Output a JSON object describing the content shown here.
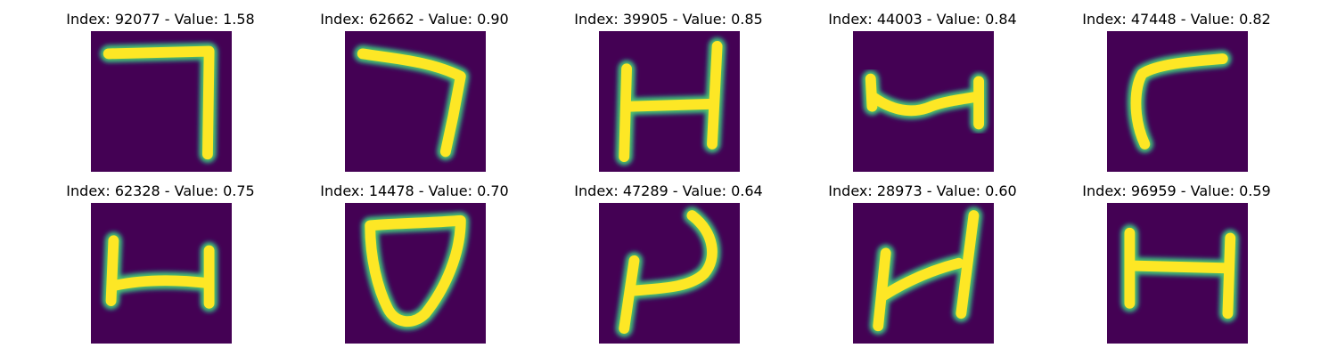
{
  "colors": {
    "background": "#440154",
    "edge": "#21918c",
    "edge_light": "#5ec962",
    "stroke": "#fde725"
  },
  "panels": [
    {
      "title": "Index: 92077 - Value: 1.58",
      "index": 92077,
      "value": 1.58
    },
    {
      "title": "Index: 62662 - Value: 0.90",
      "index": 62662,
      "value": 0.9
    },
    {
      "title": "Index: 39905 - Value: 0.85",
      "index": 39905,
      "value": 0.85
    },
    {
      "title": "Index: 44003 - Value: 0.84",
      "index": 44003,
      "value": 0.84
    },
    {
      "title": "Index: 47448 - Value: 0.82",
      "index": 47448,
      "value": 0.82
    },
    {
      "title": "Index: 62328 - Value: 0.75",
      "index": 62328,
      "value": 0.75
    },
    {
      "title": "Index: 14478 - Value: 0.70",
      "index": 14478,
      "value": 0.7
    },
    {
      "title": "Index: 47289 - Value: 0.64",
      "index": 47289,
      "value": 0.64
    },
    {
      "title": "Index: 28973 - Value: 0.60",
      "index": 28973,
      "value": 0.6
    },
    {
      "title": "Index: 96959 - Value: 0.59",
      "index": 96959,
      "value": 0.59
    }
  ]
}
